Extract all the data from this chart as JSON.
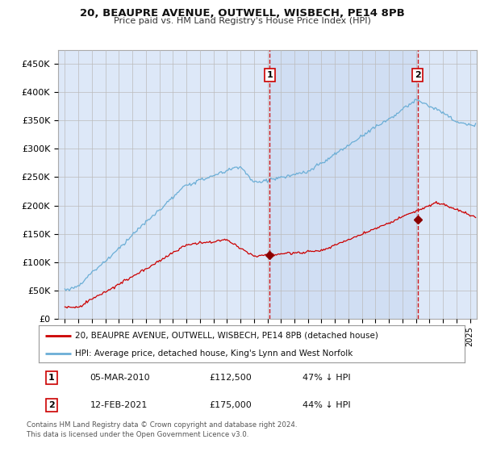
{
  "title": "20, BEAUPRE AVENUE, OUTWELL, WISBECH, PE14 8PB",
  "subtitle": "Price paid vs. HM Land Registry's House Price Index (HPI)",
  "legend_line1": "20, BEAUPRE AVENUE, OUTWELL, WISBECH, PE14 8PB (detached house)",
  "legend_line2": "HPI: Average price, detached house, King's Lynn and West Norfolk",
  "footnote": "Contains HM Land Registry data © Crown copyright and database right 2024.\nThis data is licensed under the Open Government Licence v3.0.",
  "sale1_label": "1",
  "sale1_date": "05-MAR-2010",
  "sale1_price": "£112,500",
  "sale1_hpi": "47% ↓ HPI",
  "sale2_label": "2",
  "sale2_date": "12-FEB-2021",
  "sale2_price": "£175,000",
  "sale2_hpi": "44% ↓ HPI",
  "hpi_color": "#6baed6",
  "price_color": "#cc0000",
  "sale_marker_color": "#8b0000",
  "vline_color": "#cc0000",
  "bg_color": "#dde8f8",
  "shade_color": "#c8d8f0",
  "grid_color": "#bbbbbb",
  "ylim": [
    0,
    475000
  ],
  "yticks": [
    0,
    50000,
    100000,
    150000,
    200000,
    250000,
    300000,
    350000,
    400000,
    450000
  ],
  "ytick_labels": [
    "£0",
    "£50K",
    "£100K",
    "£150K",
    "£200K",
    "£250K",
    "£300K",
    "£350K",
    "£400K",
    "£450K"
  ],
  "sale1_x": 2010.17,
  "sale2_x": 2021.12,
  "sale1_y": 112500,
  "sale2_y": 175000,
  "xmin": 1995,
  "xmax": 2025
}
